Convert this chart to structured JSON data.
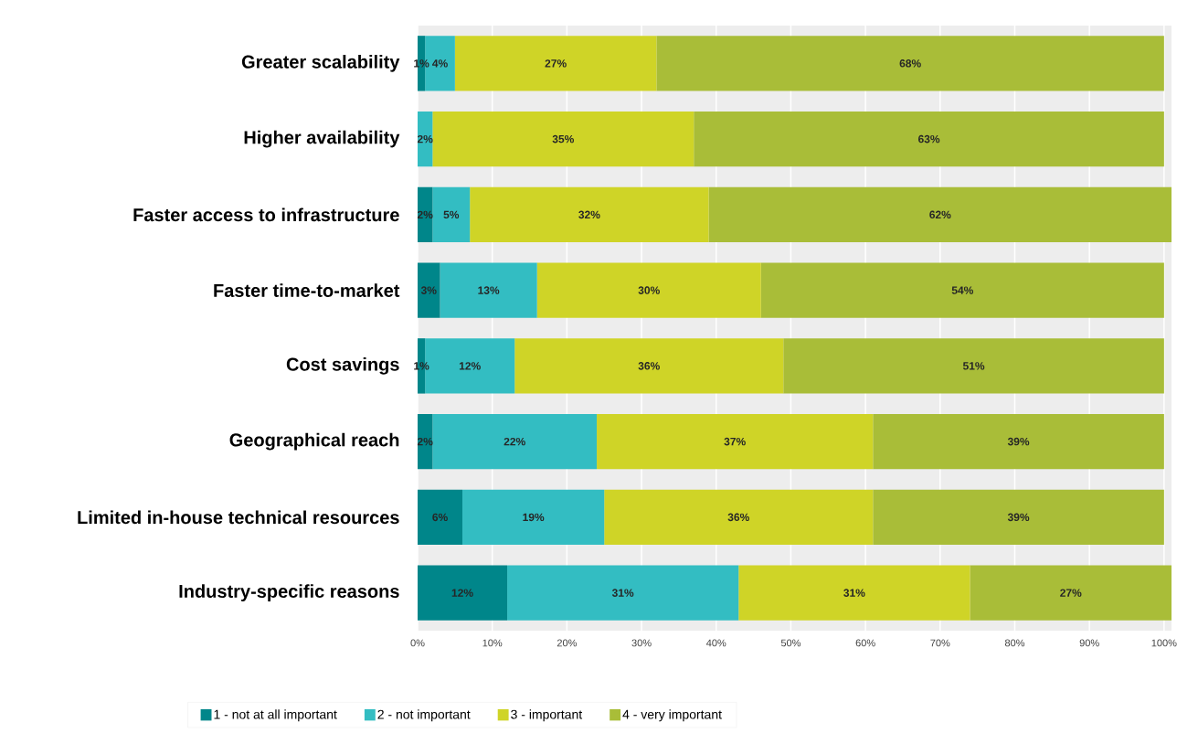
{
  "chart_data": {
    "type": "bar",
    "orientation": "horizontal",
    "stacked": true,
    "categories": [
      "Greater scalability",
      "Higher availability",
      "Faster access to infrastructure",
      "Faster time-to-market",
      "Cost savings",
      "Geographical reach",
      "Limited in-house technical resources",
      "Industry-specific reasons"
    ],
    "series": [
      {
        "name": "1 - not at all important",
        "color": "#00868a",
        "values": [
          1,
          0,
          2,
          3,
          1,
          2,
          6,
          12
        ],
        "value_labels": [
          "1%",
          null,
          "2%",
          "3%",
          "1%",
          "2%",
          "6%",
          "12%"
        ]
      },
      {
        "name": "2 - not important",
        "color": "#33bdc2",
        "values": [
          4,
          2,
          5,
          13,
          12,
          22,
          19,
          31
        ],
        "value_labels": [
          "4%",
          "2%",
          "5%",
          "13%",
          "12%",
          "22%",
          "19%",
          "31%"
        ]
      },
      {
        "name": "3 - important",
        "color": "#cfd427",
        "values": [
          27,
          35,
          32,
          30,
          36,
          37,
          36,
          31
        ],
        "value_labels": [
          "27%",
          "35%",
          "32%",
          "30%",
          "36%",
          "37%",
          "36%",
          "31%"
        ]
      },
      {
        "name": "4 - very important",
        "color": "#a9bd38",
        "values": [
          68,
          63,
          62,
          54,
          51,
          39,
          39,
          27
        ],
        "value_labels": [
          "68%",
          "63%",
          "62%",
          "54%",
          "51%",
          "39%",
          "39%",
          "27%"
        ]
      }
    ],
    "xlim": [
      0,
      101
    ],
    "xticks": [
      {
        "value": 0,
        "label": "0%"
      },
      {
        "value": 10,
        "label": "10%"
      },
      {
        "value": 20,
        "label": "20%"
      },
      {
        "value": 30,
        "label": "30%"
      },
      {
        "value": 40,
        "label": "40%"
      },
      {
        "value": 50,
        "label": "50%"
      },
      {
        "value": 60,
        "label": "60%"
      },
      {
        "value": 70,
        "label": "70%"
      },
      {
        "value": 80,
        "label": "80%"
      },
      {
        "value": 90,
        "label": "90%"
      },
      {
        "value": 100,
        "label": "100%"
      }
    ],
    "grid": "x",
    "legend": "bottom"
  }
}
